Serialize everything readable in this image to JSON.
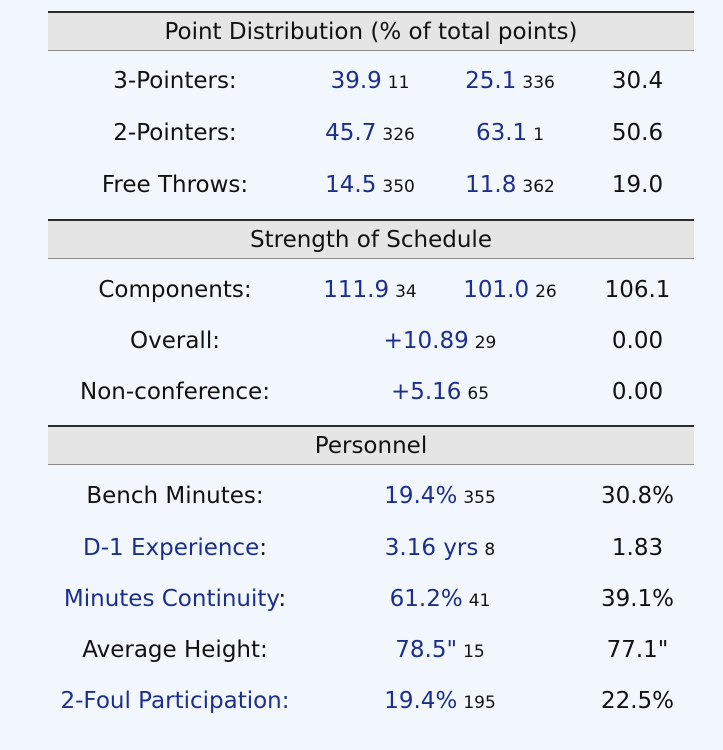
{
  "point_distribution": {
    "title": "Point Distribution (% of total points)",
    "rows": [
      {
        "label": "3-Pointers:",
        "off": "39.9",
        "off_rank": "11",
        "def": "25.1",
        "def_rank": "336",
        "avg": "30.4"
      },
      {
        "label": "2-Pointers:",
        "off": "45.7",
        "off_rank": "326",
        "def": "63.1",
        "def_rank": "1",
        "avg": "50.6"
      },
      {
        "label": "Free Throws:",
        "off": "14.5",
        "off_rank": "350",
        "def": "11.8",
        "def_rank": "362",
        "avg": "19.0"
      }
    ]
  },
  "strength_of_schedule": {
    "title": "Strength of Schedule",
    "components": {
      "label": "Components:",
      "off": "111.9",
      "off_rank": "34",
      "def": "101.0",
      "def_rank": "26",
      "avg": "106.1"
    },
    "overall": {
      "label": "Overall:",
      "value": "+10.89",
      "rank": "29",
      "avg": "0.00"
    },
    "nonconf": {
      "label": "Non-conference:",
      "value": "+5.16",
      "rank": "65",
      "avg": "0.00"
    }
  },
  "personnel": {
    "title": "Personnel",
    "rows": [
      {
        "label": "Bench Minutes:",
        "value": "19.4%",
        "rank": "355",
        "avg": "30.8%"
      },
      {
        "label": "D-1 Experience",
        "value": "3.16 yrs",
        "rank": "8",
        "avg": "1.83"
      },
      {
        "label": "Minutes Continuity",
        "value": "61.2%",
        "rank": "41",
        "avg": "39.1%"
      },
      {
        "label": "Average Height:",
        "value": "78.5\"",
        "rank": "15",
        "avg": "77.1\""
      },
      {
        "label": "2-Foul Participation:",
        "value": "19.4%",
        "rank": "195",
        "avg": "22.5%"
      }
    ],
    "colon": ":"
  },
  "colors": {
    "link": "#1d2f8c",
    "header_bg": "#e5e5e5",
    "page_bg": "#f2f7fd"
  }
}
